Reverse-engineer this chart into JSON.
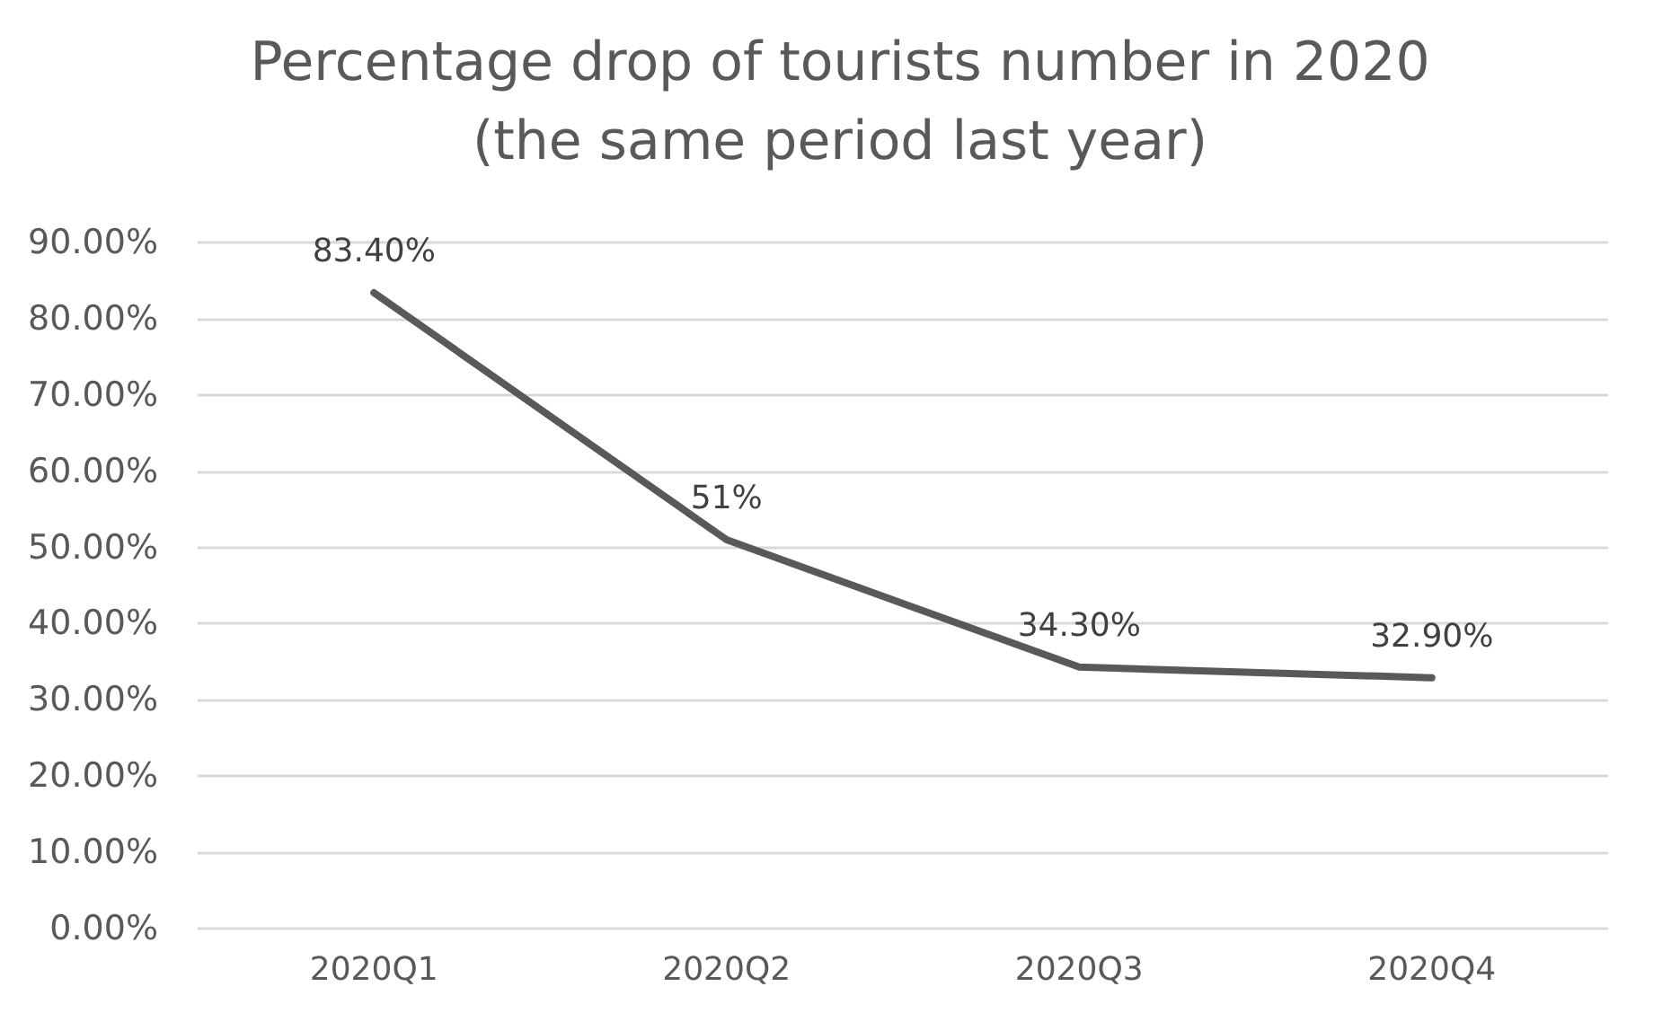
{
  "chart_data": {
    "type": "line",
    "title": "Percentage drop of tourists number in 2020\n(the same period last year)",
    "categories": [
      "2020Q1",
      "2020Q2",
      "2020Q3",
      "2020Q4"
    ],
    "values": [
      83.4,
      51,
      34.3,
      32.9
    ],
    "value_labels": [
      "83.40%",
      "51%",
      "34.30%",
      "32.90%"
    ],
    "color": "#595959",
    "ylim": [
      0,
      90
    ],
    "yticks": [
      {
        "value": 0,
        "label": "0.00%"
      },
      {
        "value": 10,
        "label": "10.00%"
      },
      {
        "value": 20,
        "label": "20.00%"
      },
      {
        "value": 30,
        "label": "30.00%"
      },
      {
        "value": 40,
        "label": "40.00%"
      },
      {
        "value": 50,
        "label": "50.00%"
      },
      {
        "value": 60,
        "label": "60.00%"
      },
      {
        "value": 70,
        "label": "70.00%"
      },
      {
        "value": 80,
        "label": "80.00%"
      },
      {
        "value": 90,
        "label": "90.00%"
      }
    ],
    "grid": "y"
  }
}
